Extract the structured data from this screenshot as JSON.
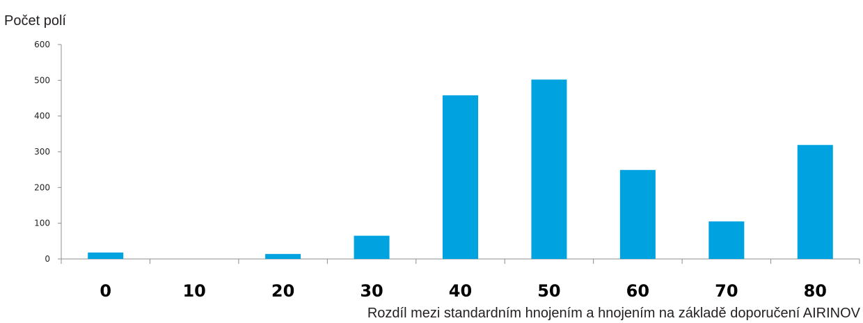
{
  "chart_data": {
    "type": "bar",
    "title": "",
    "ylabel": "Počet polí",
    "xlabel": "Rozdíl mezi standardním hnojením a hnojením na základě doporučení AIRINOV",
    "categories": [
      "0",
      "10",
      "20",
      "30",
      "40",
      "50",
      "60",
      "70",
      "80"
    ],
    "values": [
      18,
      0,
      14,
      65,
      458,
      502,
      249,
      105,
      319
    ],
    "ylim": [
      0,
      600
    ],
    "yticks": [
      "0",
      "100",
      "200",
      "300",
      "400",
      "500",
      "600"
    ],
    "grid": false,
    "legend": "none",
    "bar_color": "#00a3e0"
  }
}
